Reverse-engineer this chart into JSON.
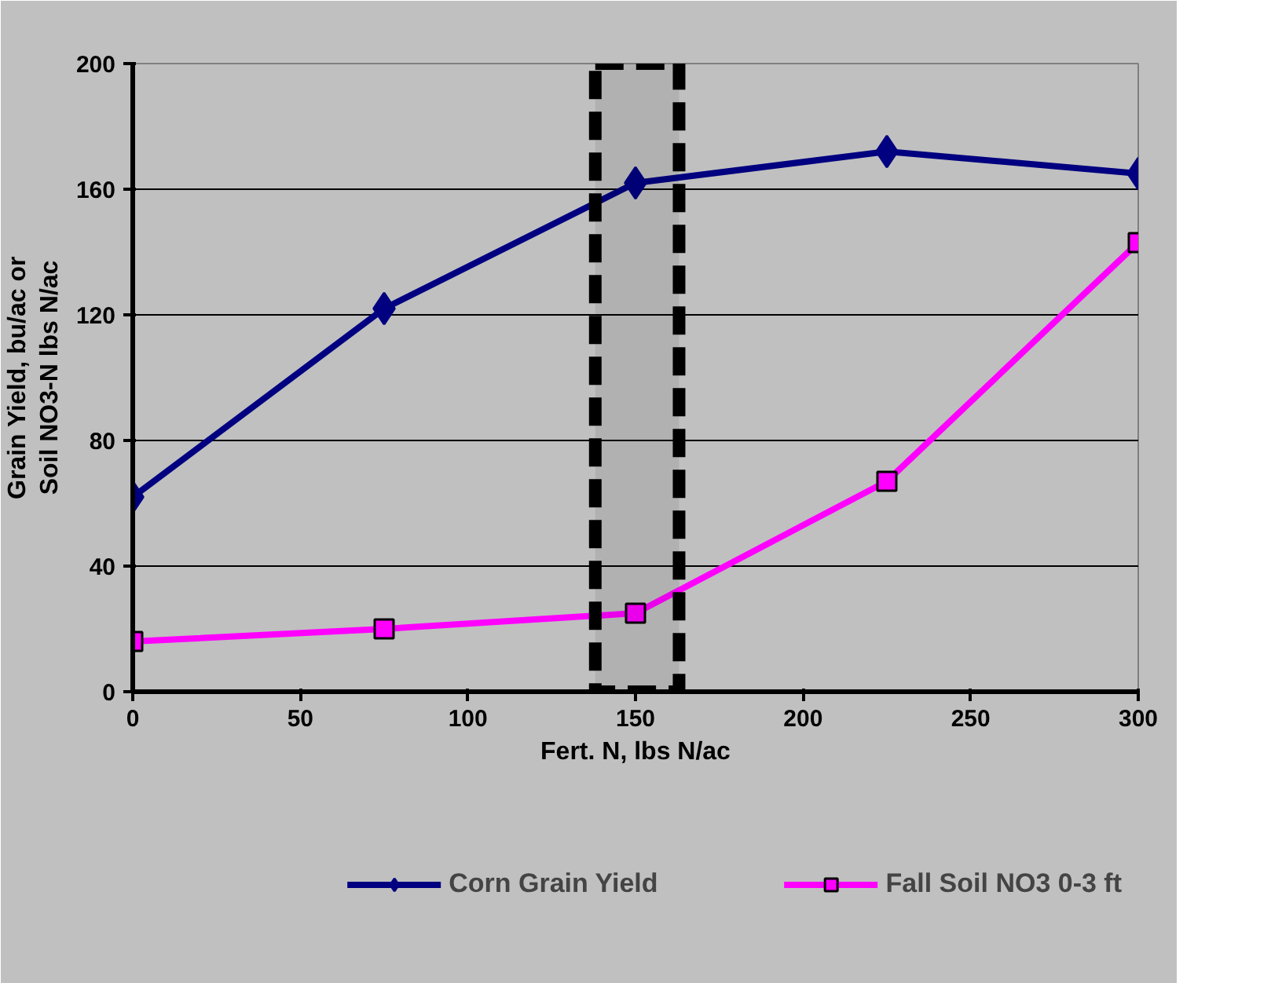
{
  "chart_data": {
    "type": "line",
    "xlabel": "Fert. N, lbs N/ac",
    "ylabel": "Grain Yield, bu/ac or\nSoil NO3-N lbs N/ac",
    "x": [
      0,
      75,
      150,
      225,
      300
    ],
    "series": [
      {
        "name": "Corn Grain Yield",
        "color": "#000080",
        "marker": "diamond",
        "values": [
          62,
          122,
          162,
          172,
          165
        ]
      },
      {
        "name": "Fall Soil NO3 0-3 ft",
        "color": "#ff00ff",
        "marker": "square",
        "values": [
          16,
          20,
          25,
          67,
          143
        ]
      }
    ],
    "xlim": [
      0,
      300
    ],
    "xticks": [
      0,
      50,
      100,
      150,
      200,
      250,
      300
    ],
    "ylim": [
      0,
      200
    ],
    "yticks": [
      0,
      40,
      80,
      120,
      160,
      200
    ],
    "grid": "y",
    "legend": "bottom",
    "line_style": "solid",
    "bands": [
      {
        "axis": "x",
        "from": 138,
        "to": 163,
        "label": null,
        "color": "#000000"
      }
    ]
  }
}
